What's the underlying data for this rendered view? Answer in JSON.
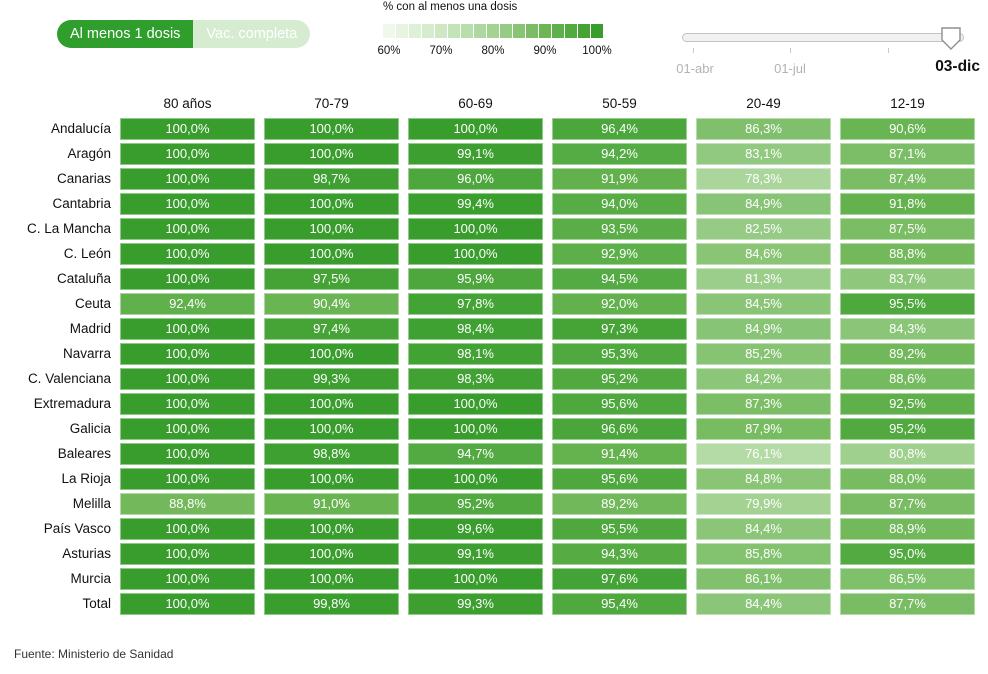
{
  "toggle": {
    "options": [
      "Al menos 1 dosis",
      "Vac. completa"
    ],
    "selected": "Al menos 1 dosis"
  },
  "legend": {
    "title": "% con al menos una dosis",
    "tick_labels": [
      "60%",
      "70%",
      "80%",
      "90%",
      "100%"
    ],
    "min": 60,
    "max": 100,
    "swatch_count": 17
  },
  "slider": {
    "tick_labels": [
      "01-abr",
      "01-jul"
    ],
    "current_label": "03-dic"
  },
  "source": "Fuente: Ministerio de Sanidad",
  "colors": {
    "toggle_selected": "#2f9e2c",
    "toggle_unselected": "#d6ecd0",
    "cell_text": "#ffffff"
  },
  "chart_data": {
    "type": "heatmap",
    "title": "% con al menos una dosis",
    "columns": [
      "80 años",
      "70-79",
      "60-69",
      "50-59",
      "20-49",
      "12-19"
    ],
    "rows": [
      {
        "name": "Andalucía",
        "values": [
          100.0,
          100.0,
          100.0,
          96.4,
          86.3,
          90.6
        ]
      },
      {
        "name": "Aragón",
        "values": [
          100.0,
          100.0,
          99.1,
          94.2,
          83.1,
          87.1
        ]
      },
      {
        "name": "Canarias",
        "values": [
          100.0,
          98.7,
          96.0,
          91.9,
          78.3,
          87.4
        ]
      },
      {
        "name": "Cantabria",
        "values": [
          100.0,
          100.0,
          99.4,
          94.0,
          84.9,
          91.8
        ]
      },
      {
        "name": "C. La Mancha",
        "values": [
          100.0,
          100.0,
          100.0,
          93.5,
          82.5,
          87.5
        ]
      },
      {
        "name": "C. León",
        "values": [
          100.0,
          100.0,
          100.0,
          92.9,
          84.6,
          88.8
        ]
      },
      {
        "name": "Cataluña",
        "values": [
          100.0,
          97.5,
          95.9,
          94.5,
          81.3,
          83.7
        ]
      },
      {
        "name": "Ceuta",
        "values": [
          92.4,
          90.4,
          97.8,
          92.0,
          84.5,
          95.5
        ]
      },
      {
        "name": "Madrid",
        "values": [
          100.0,
          97.4,
          98.4,
          97.3,
          84.9,
          84.3
        ]
      },
      {
        "name": "Navarra",
        "values": [
          100.0,
          100.0,
          98.1,
          95.3,
          85.2,
          89.2
        ]
      },
      {
        "name": "C. Valenciana",
        "values": [
          100.0,
          99.3,
          98.3,
          95.2,
          84.2,
          88.6
        ]
      },
      {
        "name": "Extremadura",
        "values": [
          100.0,
          100.0,
          100.0,
          95.6,
          87.3,
          92.5
        ]
      },
      {
        "name": "Galicia",
        "values": [
          100.0,
          100.0,
          100.0,
          96.6,
          87.9,
          95.2
        ]
      },
      {
        "name": "Baleares",
        "values": [
          100.0,
          98.8,
          94.7,
          91.4,
          76.1,
          80.8
        ]
      },
      {
        "name": "La Rioja",
        "values": [
          100.0,
          100.0,
          100.0,
          95.6,
          84.8,
          88.0
        ]
      },
      {
        "name": "Melilla",
        "values": [
          88.8,
          91.0,
          95.2,
          89.2,
          79.9,
          87.7
        ]
      },
      {
        "name": "País Vasco",
        "values": [
          100.0,
          100.0,
          99.6,
          95.5,
          84.4,
          88.9
        ]
      },
      {
        "name": "Asturias",
        "values": [
          100.0,
          100.0,
          99.1,
          94.3,
          85.8,
          95.0
        ]
      },
      {
        "name": "Murcia",
        "values": [
          100.0,
          100.0,
          100.0,
          97.6,
          86.1,
          86.5
        ]
      },
      {
        "name": "Total",
        "values": [
          100.0,
          99.8,
          99.3,
          95.4,
          84.4,
          87.7
        ]
      }
    ],
    "value_suffix": "%",
    "decimal_separator": ",",
    "color_scale": {
      "stops": [
        {
          "value": 60,
          "color": "#f0f7ec"
        },
        {
          "value": 70,
          "color": "#cee8c4"
        },
        {
          "value": 80,
          "color": "#a3d293"
        },
        {
          "value": 90,
          "color": "#6cb655"
        },
        {
          "value": 100,
          "color": "#389d2c"
        }
      ]
    }
  }
}
